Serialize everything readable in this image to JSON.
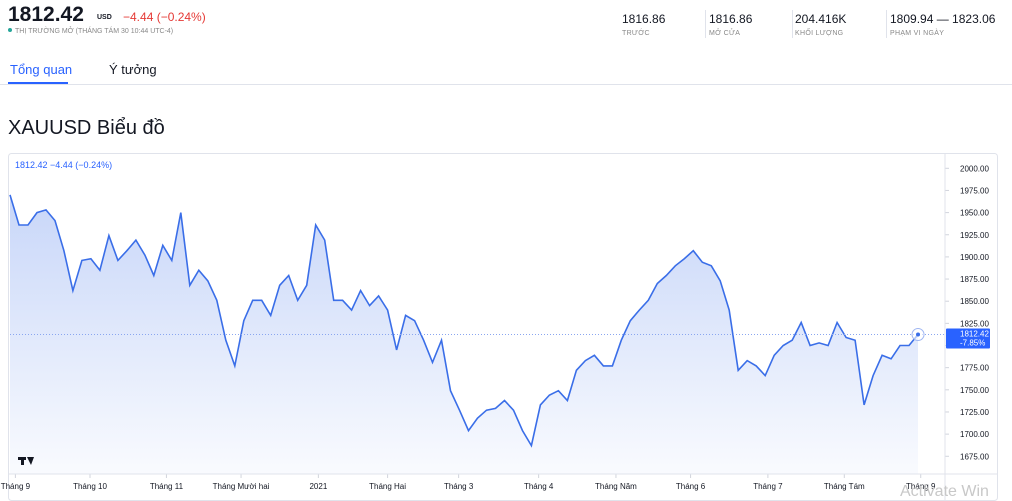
{
  "header": {
    "price": "1812.42",
    "currency": "USD",
    "change": "−4.44 (−0.24%)",
    "status": "THỊ TRƯỜNG MỞ (THÁNG TÁM 30 10:44 UTC-4)",
    "stats": [
      {
        "value": "1816.86",
        "label": "TRƯỚC"
      },
      {
        "value": "1816.86",
        "label": "MỞ CỬA"
      },
      {
        "value": "204.416K",
        "label": "KHỐI LƯỢNG"
      },
      {
        "value": "1809.94 — 1823.06",
        "label": "PHẠM VI NGÀY"
      }
    ]
  },
  "tabs": [
    "Tổng quan",
    "Ý tưởng"
  ],
  "section_title": "XAUUSD Biểu đồ",
  "chart": {
    "type": "line",
    "legend": "1812.42  −4.44 (−0.24%)",
    "color": "#3a6ee8",
    "values": [
      1970,
      1936,
      1936,
      1950,
      1953,
      1941,
      1907,
      1862,
      1896,
      1898,
      1885,
      1924,
      1896,
      1907,
      1919,
      1902,
      1879,
      1913,
      1896,
      1950,
      1868,
      1885,
      1873,
      1851,
      1806,
      1777,
      1828,
      1851,
      1851,
      1834,
      1868,
      1879,
      1851,
      1868,
      1936,
      1919,
      1851,
      1851,
      1840,
      1862,
      1845,
      1856,
      1840,
      1795,
      1834,
      1828,
      1806,
      1781,
      1806,
      1749,
      1727,
      1704,
      1718,
      1727,
      1729,
      1738,
      1727,
      1704,
      1687,
      1733,
      1744,
      1749,
      1738,
      1772,
      1783,
      1789,
      1777,
      1777,
      1806,
      1828,
      1840,
      1851,
      1870,
      1879,
      1890,
      1898,
      1907,
      1894,
      1890,
      1873,
      1840,
      1772,
      1783,
      1777,
      1766,
      1789,
      1800,
      1806,
      1826,
      1800,
      1803,
      1800,
      1826,
      1809,
      1806,
      1733,
      1766,
      1789,
      1785,
      1800,
      1800,
      1812.42
    ],
    "xlim": [
      0,
      104
    ],
    "xticks": [
      {
        "value": 0.6,
        "label": "Tháng 9"
      },
      {
        "value": 8.9,
        "label": "Tháng 10"
      },
      {
        "value": 17.4,
        "label": "Tháng 11"
      },
      {
        "value": 25.7,
        "label": "Tháng Mười hai"
      },
      {
        "value": 34.3,
        "label": "2021"
      },
      {
        "value": 42,
        "label": "Tháng Hai"
      },
      {
        "value": 49.9,
        "label": "Tháng 3"
      },
      {
        "value": 58.8,
        "label": "Tháng 4"
      },
      {
        "value": 67.4,
        "label": "Tháng Năm"
      },
      {
        "value": 75.7,
        "label": "Tháng 6"
      },
      {
        "value": 84.3,
        "label": "Tháng 7"
      },
      {
        "value": 92.8,
        "label": "Tháng Tám"
      },
      {
        "value": 101.3,
        "label": "Tháng 9"
      }
    ],
    "ylim": [
      1655,
      2015
    ],
    "yticks": [
      {
        "value": 2000,
        "label": "2000.00"
      },
      {
        "value": 1975,
        "label": "1975.00"
      },
      {
        "value": 1950,
        "label": "1950.00"
      },
      {
        "value": 1925,
        "label": "1925.00"
      },
      {
        "value": 1900,
        "label": "1900.00"
      },
      {
        "value": 1875,
        "label": "1875.00"
      },
      {
        "value": 1850,
        "label": "1850.00"
      },
      {
        "value": 1825,
        "label": "1825.00"
      },
      {
        "value": 1800,
        "label": "1800.00"
      },
      {
        "value": 1775,
        "label": "1775.00"
      },
      {
        "value": 1750,
        "label": "1750.00"
      },
      {
        "value": 1725,
        "label": "1725.00"
      },
      {
        "value": 1700,
        "label": "1700.00"
      },
      {
        "value": 1675,
        "label": "1675.00"
      }
    ],
    "price_tag": {
      "price": "1812.42",
      "change": "-7.85%"
    }
  },
  "watermark": "Activate Win"
}
